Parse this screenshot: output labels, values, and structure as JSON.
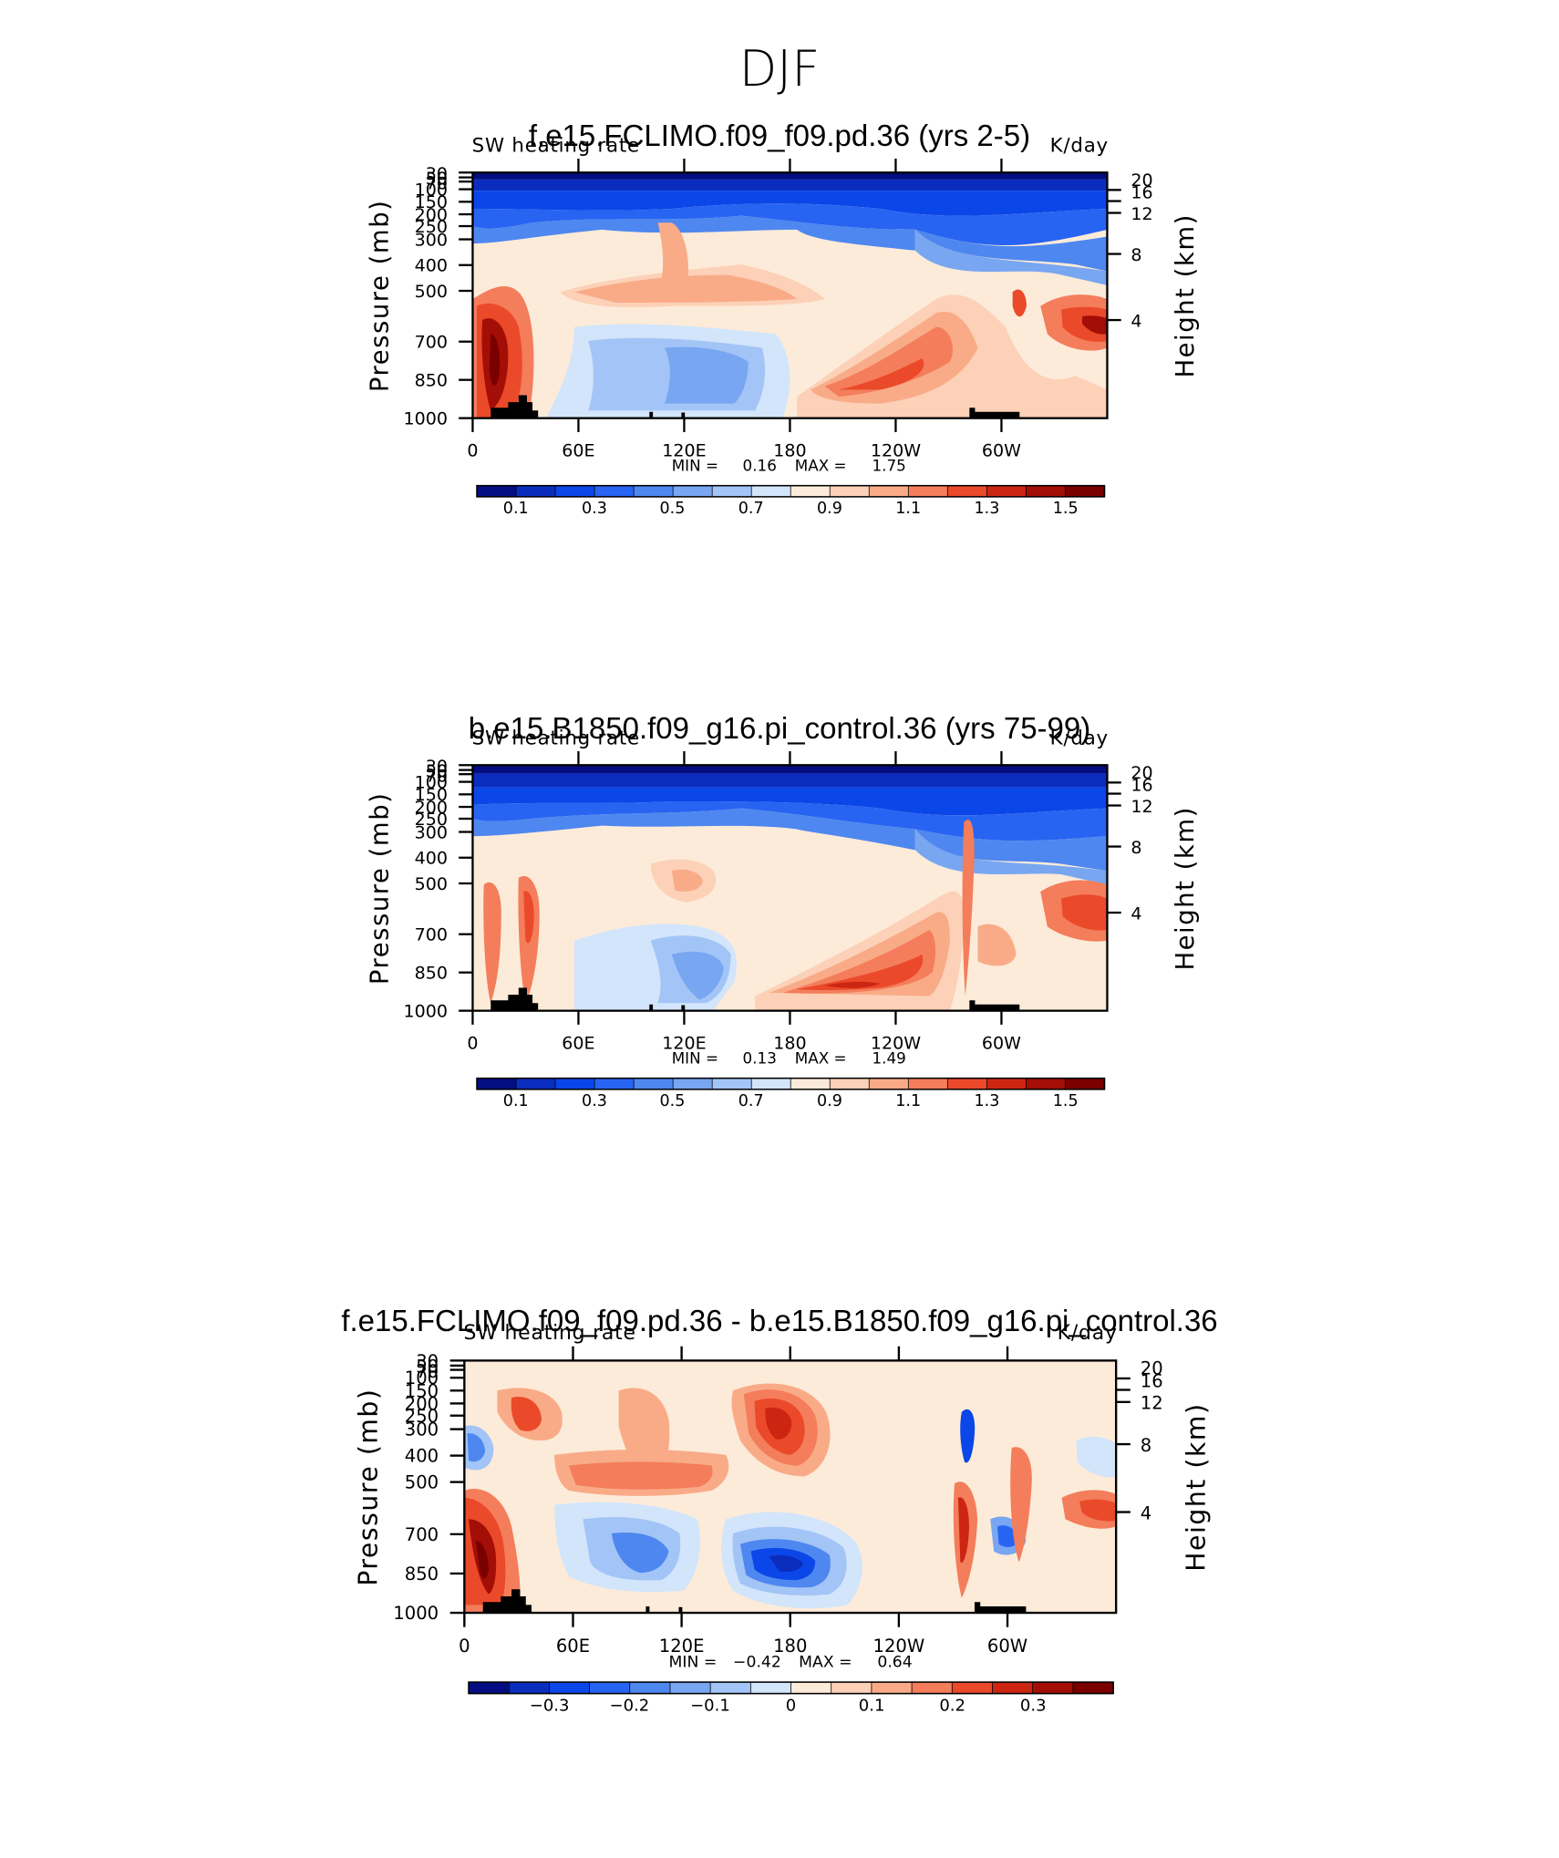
{
  "title": "DJF",
  "colors": {
    "blue_to_red_14": [
      "#040e82",
      "#0a2dbe",
      "#0b46e8",
      "#2864f2",
      "#4e87ef",
      "#78a6f1",
      "#a3c4f6",
      "#d2e5fa",
      "#fdebd9",
      "#fcd1b7",
      "#f9ab88",
      "#f47d5b",
      "#ea4a2a",
      "#cc2613",
      "#a30e06",
      "#7a0000"
    ]
  },
  "chart_data": [
    {
      "type": "heatmap",
      "title": "f.e15.FCLIMO.f09_f09.pd.36 (yrs 2-5)",
      "left_label": "SW heating rate",
      "right_label": "K/day",
      "ylabel": "Pressure (mb)",
      "ylabel_right": "Height (km)",
      "x_ticks": [
        "0",
        "60E",
        "120E",
        "180",
        "120W",
        "60W"
      ],
      "y_ticks": [
        "30",
        "50",
        "70",
        "100",
        "150",
        "200",
        "250",
        "300",
        "400",
        "500",
        "700",
        "850",
        "1000"
      ],
      "height_ticks": [
        "20",
        "16",
        "12",
        "8",
        "4"
      ],
      "min_label": "MIN =",
      "min_value": "0.16",
      "max_label": "MAX =",
      "max_value": "1.75",
      "colorbar_labels": [
        "0.1",
        "0.3",
        "0.5",
        "0.7",
        "0.9",
        "1.1",
        "1.3",
        "1.5"
      ]
    },
    {
      "type": "heatmap",
      "title": "b.e15.B1850.f09_g16.pi_control.36 (yrs 75-99)",
      "left_label": "SW heating rate",
      "right_label": "K/day",
      "ylabel": "Pressure (mb)",
      "ylabel_right": "Height (km)",
      "x_ticks": [
        "0",
        "60E",
        "120E",
        "180",
        "120W",
        "60W"
      ],
      "y_ticks": [
        "30",
        "50",
        "70",
        "100",
        "150",
        "200",
        "250",
        "300",
        "400",
        "500",
        "700",
        "850",
        "1000"
      ],
      "height_ticks": [
        "20",
        "16",
        "12",
        "8",
        "4"
      ],
      "min_label": "MIN =",
      "min_value": "0.13",
      "max_label": "MAX =",
      "max_value": "1.49",
      "colorbar_labels": [
        "0.1",
        "0.3",
        "0.5",
        "0.7",
        "0.9",
        "1.1",
        "1.3",
        "1.5"
      ]
    },
    {
      "type": "heatmap",
      "title": "f.e15.FCLIMO.f09_f09.pd.36 - b.e15.B1850.f09_g16.pi_control.36",
      "left_label": "SW heating rate",
      "right_label": "K/day",
      "ylabel": "Pressure (mb)",
      "ylabel_right": "Height (km)",
      "x_ticks": [
        "0",
        "60E",
        "120E",
        "180",
        "120W",
        "60W"
      ],
      "y_ticks": [
        "30",
        "50",
        "70",
        "100",
        "150",
        "200",
        "250",
        "300",
        "400",
        "500",
        "700",
        "850",
        "1000"
      ],
      "height_ticks": [
        "20",
        "16",
        "12",
        "8",
        "4"
      ],
      "min_label": "MIN =",
      "min_value": "−0.42",
      "max_label": "MAX =",
      "max_value": "0.64",
      "colorbar_labels": [
        "−0.3",
        "−0.2",
        "−0.1",
        "0",
        "0.1",
        "0.2",
        "0.3"
      ]
    }
  ]
}
